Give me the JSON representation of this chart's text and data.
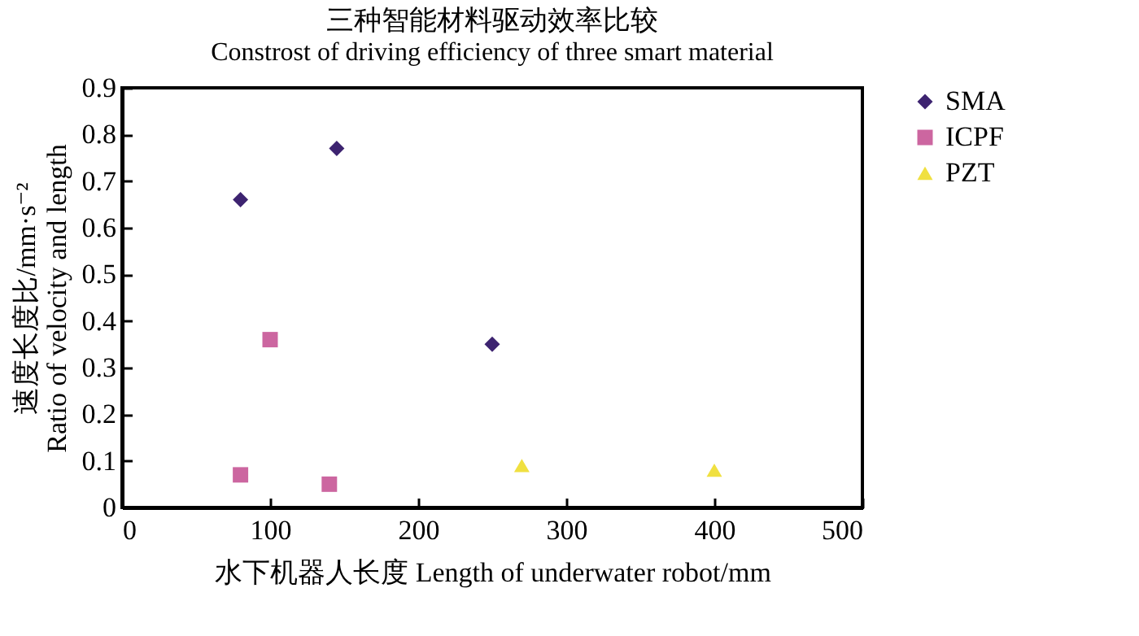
{
  "chart_data": {
    "type": "scatter",
    "title": "三种智能材料驱动效率比较",
    "subtitle": "Constrost of driving efficiency of three smart material",
    "xlabel": "水下机器人长度 Length of underwater robot/mm",
    "ylabel": [
      "速度长度比/mm·s⁻²",
      "Ratio of velocity and length"
    ],
    "xlim": [
      0,
      500
    ],
    "xticks": [
      0,
      100,
      200,
      300,
      400,
      500
    ],
    "ylim": [
      0,
      0.9
    ],
    "yticks": [
      0,
      0.1,
      0.2,
      0.3,
      0.4,
      0.5,
      0.6,
      0.7,
      0.8,
      0.9
    ],
    "grid": false,
    "legend": "right",
    "series": [
      {
        "name": "SMA",
        "color": "#3d2370",
        "marker": "diamond",
        "x": [
          80,
          145,
          250
        ],
        "values": [
          0.66,
          0.77,
          0.35
        ]
      },
      {
        "name": "ICPF",
        "color": "#cc66a0",
        "marker": "square",
        "x": [
          80,
          100,
          140
        ],
        "values": [
          0.07,
          0.36,
          0.05
        ]
      },
      {
        "name": "PZT",
        "color": "#f0e040",
        "marker": "triangle",
        "x": [
          270,
          400
        ],
        "values": [
          0.09,
          0.08
        ]
      }
    ]
  }
}
